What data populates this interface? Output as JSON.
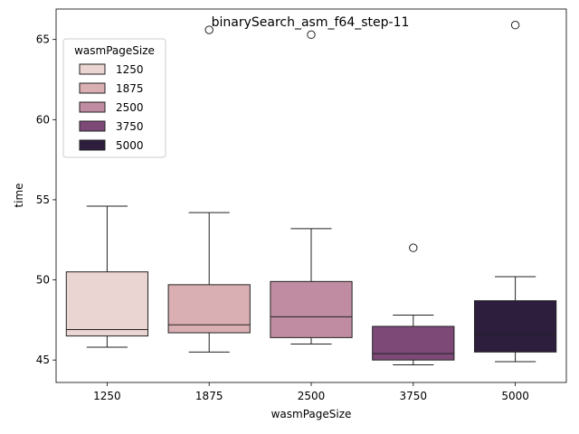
{
  "chart_data": {
    "type": "box",
    "title": "binarySearch_asm_f64_step-11",
    "xlabel": "wasmPageSize",
    "ylabel": "time",
    "ylim": [
      43.6,
      66.9
    ],
    "yticks": [
      45,
      50,
      55,
      60,
      65
    ],
    "grid": false,
    "legend": {
      "title": "wasmPageSize",
      "placement": "top-left"
    },
    "categories": [
      "1250",
      "1875",
      "2500",
      "3750",
      "5000"
    ],
    "boxes": [
      {
        "name": "1250",
        "color": "#ebd5d3",
        "whisker_low": 45.8,
        "q1": 46.5,
        "median": 46.9,
        "q3": 50.5,
        "whisker_high": 54.6,
        "outliers": []
      },
      {
        "name": "1875",
        "color": "#d9afb3",
        "whisker_low": 45.5,
        "q1": 46.7,
        "median": 47.2,
        "q3": 49.7,
        "whisker_high": 54.2,
        "outliers": [
          65.6
        ]
      },
      {
        "name": "2500",
        "color": "#c08ca2",
        "whisker_low": 46.0,
        "q1": 46.4,
        "median": 47.7,
        "q3": 49.9,
        "whisker_high": 53.2,
        "outliers": [
          65.3
        ]
      },
      {
        "name": "3750",
        "color": "#7d4a78",
        "whisker_low": 44.7,
        "q1": 45.0,
        "median": 45.4,
        "q3": 47.1,
        "whisker_high": 47.8,
        "outliers": [
          52.0
        ]
      },
      {
        "name": "5000",
        "color": "#2d1e3e",
        "whisker_low": 44.9,
        "q1": 45.5,
        "median": 46.6,
        "q3": 48.7,
        "whisker_high": 50.2,
        "outliers": [
          65.9
        ]
      }
    ]
  }
}
